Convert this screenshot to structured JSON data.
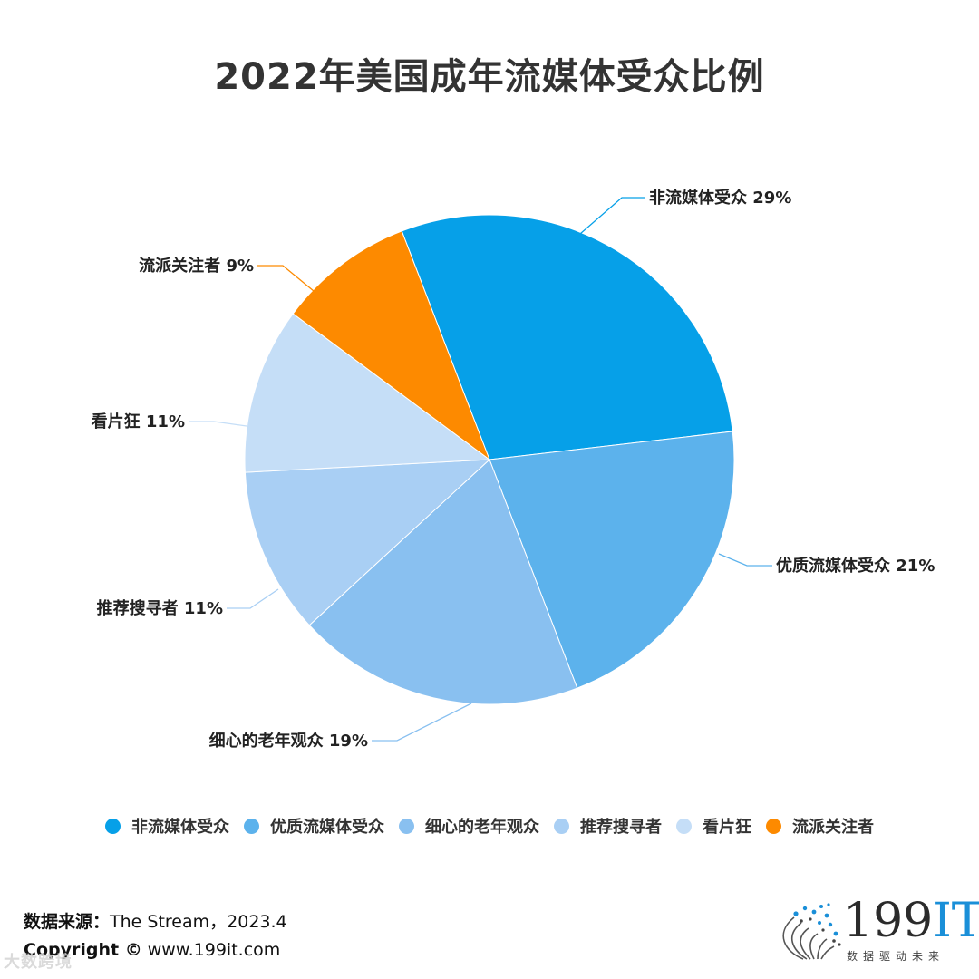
{
  "title": "2022年美国成年流媒体受众比例",
  "chart_data": {
    "type": "pie",
    "title": "2022年美国成年流媒体受众比例",
    "categories": [
      "非流媒体受众",
      "优质流媒体受众",
      "细心的老年观众",
      "推荐搜寻者",
      "看片狂",
      "流派关注者"
    ],
    "values": [
      29,
      21,
      19,
      11,
      11,
      9
    ],
    "unit": "%",
    "colors": [
      "#06a0e8",
      "#5cb2ec",
      "#89c0f0",
      "#a9cff4",
      "#c5def7",
      "#fd8a00"
    ],
    "data_labels": [
      "非流媒体受众 29%",
      "优质流媒体受众 21%",
      "细心的老年观众 19%",
      "推荐搜寻者 11%",
      "看片狂 11%",
      "流派关注者 9%"
    ],
    "legend_position": "bottom",
    "start_angle_deg": -21
  },
  "footer": {
    "source_label": "数据来源：",
    "source_text": "The Stream，2023.4",
    "copyright_label": "Copyright ©",
    "copyright_text": " www.199it.com",
    "watermark": "大数跨境"
  },
  "logo": {
    "main": "199",
    "accent": "IT",
    "tagline": "数据驱动未来",
    "accent_color": "#1a8fd8"
  }
}
